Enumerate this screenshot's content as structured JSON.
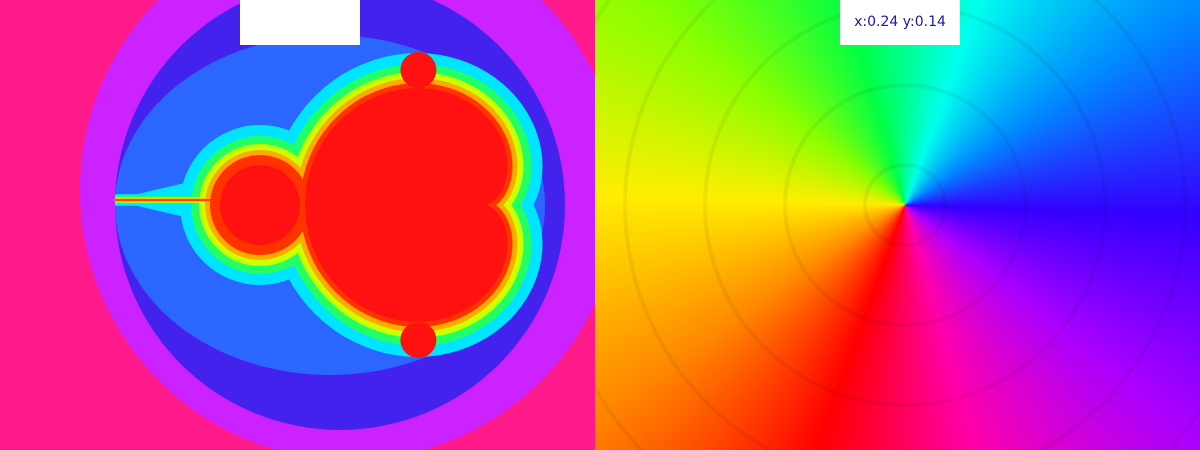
{
  "coordinate_label": "x:0.24 y:0.14"
}
